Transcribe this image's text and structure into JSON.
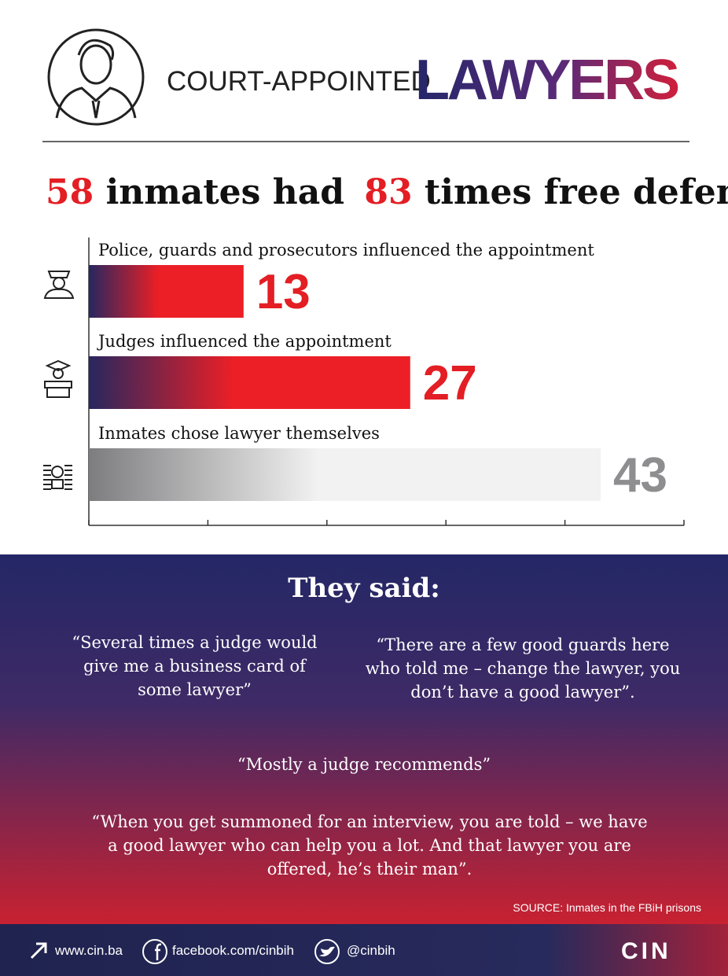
{
  "header": {
    "pre_title": "COURT-APPOINTED",
    "title": "LAWYERS"
  },
  "headline": {
    "inmates": "58",
    "inmates_text": "inmates had",
    "times": "83",
    "times_text": "times free defense"
  },
  "chart_data": {
    "type": "hbar",
    "categories": [
      "Police, guards and prosecutors influenced the appointment",
      "Judges influenced the appointment",
      "Inmates chose lawyer themselves"
    ],
    "values": [
      13,
      27,
      43
    ],
    "bar_gradients": [
      [
        "#27275f",
        "#ec1f26"
      ],
      [
        "#27275f",
        "#ec1f26"
      ],
      [
        "#7d7d7f",
        "#f2f2f2"
      ]
    ],
    "label_colors": [
      "#e31e24",
      "#e31e24",
      "#8e8e90"
    ],
    "xlim": [
      0,
      50
    ],
    "xticks": [
      0,
      10,
      20,
      30,
      40,
      50
    ]
  },
  "quotes": {
    "title": "They said:",
    "items": [
      "“Several times a judge would give me a business card of some lawyer”",
      "“There are a few good guards here who told me – change the lawyer, you don’t have a good lawyer”.",
      "“Mostly a judge recommends”",
      "“When you get summoned for an interview, you are told – we have a good lawyer who can help you a lot. And that lawyer you are offered, he’s their man”."
    ],
    "source": "SOURCE: Inmates in the FBiH prisons"
  },
  "footer": {
    "website": "www.cin.ba",
    "facebook": "facebook.com/cinbih",
    "twitter": "@cinbih",
    "logo": "CIN"
  }
}
